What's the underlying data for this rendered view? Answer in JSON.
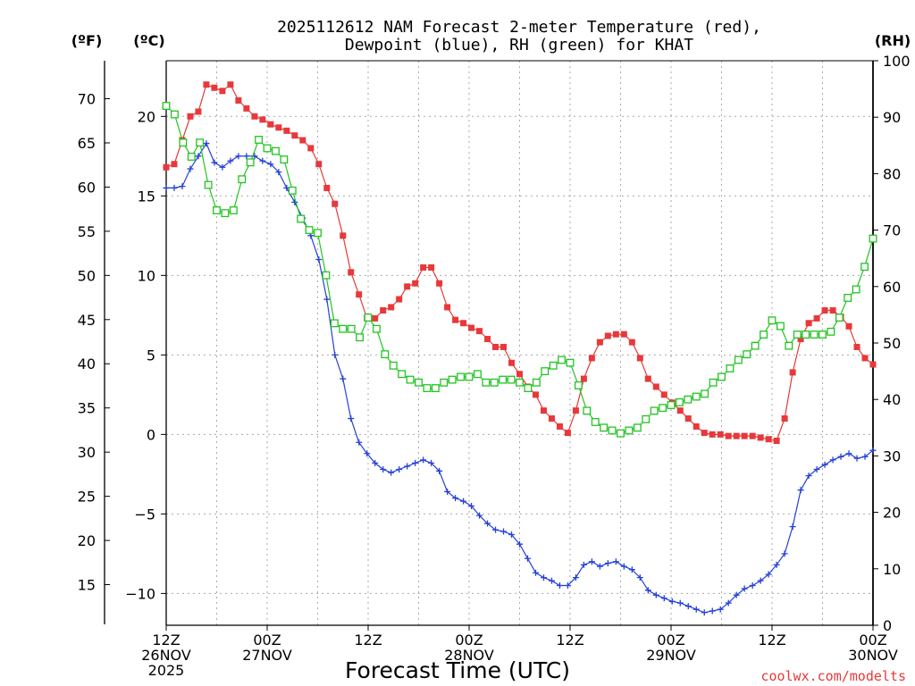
{
  "chart_data": {
    "type": "line",
    "title_line1": "2025112612 NAM Forecast 2-meter Temperature (red),",
    "title_line2": "Dewpoint (blue), RH (green) for KHAT",
    "unit_f": "(ºF)",
    "unit_c": "(ºC)",
    "unit_rh": "(RH)",
    "xlabel": "Forecast Time (UTC)",
    "credit": "coolwx.com/modelts",
    "x_range_hours": [
      0,
      84
    ],
    "y_range_c": [
      -12,
      23.5
    ],
    "rh_range": [
      0,
      100
    ],
    "f_ticks": [
      15,
      20,
      25,
      30,
      35,
      40,
      45,
      50,
      55,
      60,
      65,
      70
    ],
    "c_ticks": [
      -10,
      -5,
      0,
      5,
      10,
      15,
      20
    ],
    "rh_ticks": [
      0,
      10,
      20,
      30,
      40,
      50,
      60,
      70,
      80,
      90,
      100
    ],
    "x_ticks": [
      {
        "hour": 0,
        "lines": [
          "12Z",
          "26NOV",
          "2025"
        ]
      },
      {
        "hour": 12,
        "lines": [
          "00Z",
          "27NOV"
        ]
      },
      {
        "hour": 24,
        "lines": [
          "12Z"
        ]
      },
      {
        "hour": 36,
        "lines": [
          "00Z",
          "28NOV"
        ]
      },
      {
        "hour": 48,
        "lines": [
          "12Z"
        ]
      },
      {
        "hour": 60,
        "lines": [
          "00Z",
          "29NOV"
        ]
      },
      {
        "hour": 72,
        "lines": [
          "12Z"
        ]
      },
      {
        "hour": 84,
        "lines": [
          "00Z",
          "30NOV"
        ]
      }
    ],
    "colors": {
      "temperature": "#e8383a",
      "dewpoint": "#2540d8",
      "rh": "#22c422"
    },
    "series": [
      {
        "name": "Temperature",
        "unit": "C",
        "values": [
          16.8,
          17,
          18.5,
          20,
          20.3,
          22,
          21.8,
          21.6,
          22,
          21,
          20.5,
          20,
          19.8,
          19.5,
          19.3,
          19.1,
          18.8,
          18.5,
          18,
          17,
          15.5,
          14.5,
          12.5,
          10.2,
          8.8,
          7.3,
          7.3,
          7.8,
          8,
          8.5,
          9.3,
          9.5,
          10.5,
          10.5,
          9.5,
          8,
          7.2,
          7,
          6.7,
          6.5,
          6,
          5.5,
          5.5,
          4.5,
          3.8,
          3,
          2.5,
          1.5,
          1,
          0.5,
          0.1,
          1.5,
          3.5,
          4.8,
          5.8,
          6.2,
          6.3,
          6.3,
          5.8,
          4.8,
          3.5,
          3,
          2.5,
          2,
          1.5,
          1,
          0.5,
          0.1,
          0,
          0,
          -0.1,
          -0.1,
          -0.1,
          -0.1,
          -0.2,
          -0.3,
          -0.4,
          1,
          3.9,
          6,
          7,
          7.3,
          7.8,
          7.8,
          7.4,
          6.8,
          5.5,
          4.8,
          4.4
        ]
      },
      {
        "name": "Dewpoint",
        "unit": "C",
        "values": [
          15.5,
          15.5,
          15.6,
          16.7,
          17.5,
          18.3,
          17.1,
          16.8,
          17.2,
          17.5,
          17.5,
          17.5,
          17.2,
          17,
          16.5,
          15.5,
          14.6,
          13.6,
          12.5,
          11,
          8.5,
          5,
          3.5,
          1,
          -0.5,
          -1.2,
          -1.8,
          -2.2,
          -2.4,
          -2.2,
          -2,
          -1.8,
          -1.6,
          -1.8,
          -2.3,
          -3.6,
          -4,
          -4.2,
          -4.5,
          -5.1,
          -5.6,
          -6,
          -6.1,
          -6.3,
          -6.9,
          -7.8,
          -8.7,
          -9,
          -9.2,
          -9.5,
          -9.5,
          -9,
          -8.2,
          -8,
          -8.3,
          -8.1,
          -8,
          -8.3,
          -8.5,
          -9,
          -9.8,
          -10.1,
          -10.3,
          -10.5,
          -10.6,
          -10.8,
          -11,
          -11.2,
          -11.1,
          -11,
          -10.6,
          -10.1,
          -9.7,
          -9.5,
          -9.2,
          -8.8,
          -8.2,
          -7.5,
          -5.8,
          -3.5,
          -2.6,
          -2.2,
          -1.9,
          -1.6,
          -1.4,
          -1.2,
          -1.5,
          -1.4,
          -1
        ]
      },
      {
        "name": "RH",
        "unit": "%",
        "values": [
          92,
          90.5,
          85.5,
          83,
          85.5,
          78,
          73.5,
          73,
          73.5,
          79,
          82,
          86,
          84.5,
          84,
          82.5,
          77,
          72,
          70,
          69.5,
          62,
          53.5,
          52.5,
          52.5,
          51,
          54.5,
          52.5,
          48,
          46,
          44.5,
          43.5,
          43,
          42,
          42,
          43,
          43.5,
          44,
          44,
          44.5,
          43,
          43,
          43.5,
          43.5,
          43,
          42,
          43,
          45,
          46,
          47,
          46.5,
          42.5,
          38,
          36,
          35,
          34.5,
          34,
          34.5,
          35,
          36.5,
          38,
          38.5,
          39,
          39.5,
          40,
          40.5,
          41,
          43,
          44,
          45.5,
          47,
          48,
          49.5,
          51.5,
          54,
          53,
          49.5,
          51.5,
          51.5,
          51.5,
          51.5,
          52,
          54.5,
          58,
          59.5,
          63.5,
          68.5
        ]
      }
    ]
  }
}
